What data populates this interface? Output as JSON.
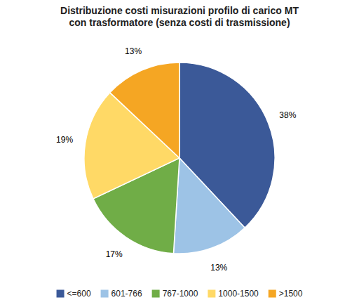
{
  "chart_data": {
    "type": "pie",
    "title": "Distribuzione costi misurazioni profilo di carico MT\ncon trasformatore (senza costi di trasmissione)",
    "categories": [
      "<=600",
      "601-766",
      "767-1000",
      "1000-1500",
      ">1500"
    ],
    "values": [
      38,
      13,
      17,
      19,
      13
    ],
    "value_labels": [
      "38%",
      "13%",
      "17%",
      "19%",
      "13%"
    ],
    "colors": [
      "#3B5998",
      "#9DC3E6",
      "#70AD47",
      "#FFD966",
      "#F5A623"
    ],
    "data_labels": true,
    "legend": "bottom"
  }
}
